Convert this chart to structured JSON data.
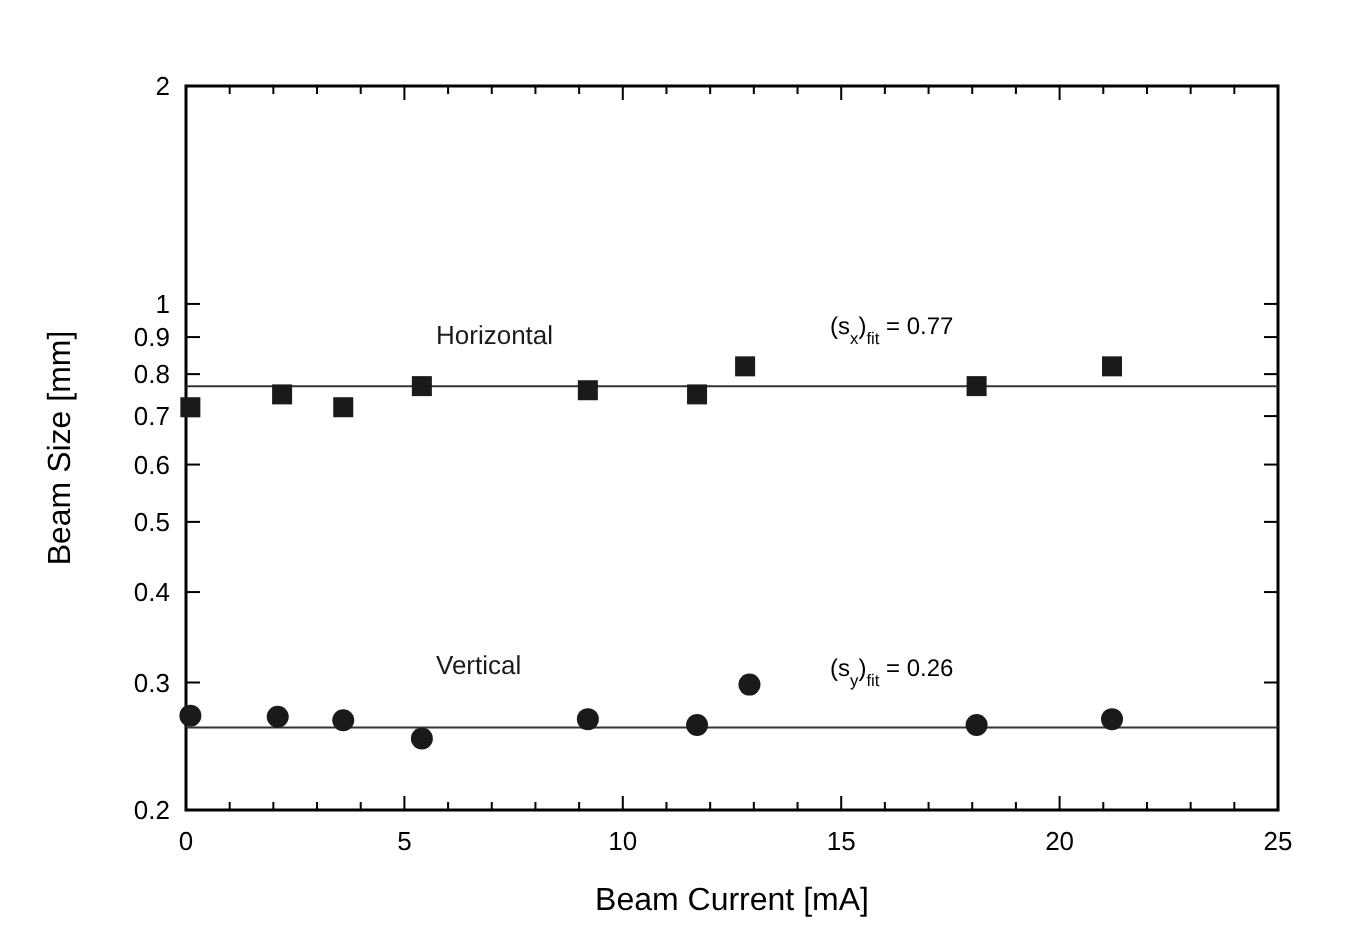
{
  "chart_data": {
    "type": "scatter",
    "xlabel": "Beam Current [mA]",
    "ylabel": "Beam Size [mm]",
    "xlim": [
      0,
      25
    ],
    "xticks": [
      0,
      {
        "value": 1,
        "label": null
      },
      {
        "value": 2,
        "label": null
      },
      {
        "value": 3,
        "label": null
      },
      {
        "value": 4,
        "label": null
      },
      5,
      {
        "value": 6,
        "label": null
      },
      {
        "value": 7,
        "label": null
      },
      {
        "value": 8,
        "label": null
      },
      {
        "value": 9,
        "label": null
      },
      10,
      {
        "value": 11,
        "label": null
      },
      {
        "value": 12,
        "label": null
      },
      {
        "value": 13,
        "label": null
      },
      {
        "value": 14,
        "label": null
      },
      15,
      {
        "value": 16,
        "label": null
      },
      {
        "value": 17,
        "label": null
      },
      {
        "value": 18,
        "label": null
      },
      {
        "value": 19,
        "label": null
      },
      20,
      {
        "value": 21,
        "label": null
      },
      {
        "value": 22,
        "label": null
      },
      {
        "value": 23,
        "label": null
      },
      {
        "value": 24,
        "label": null
      },
      25
    ],
    "ylim": [
      0.2,
      2
    ],
    "yticks": [
      0.2,
      0.3,
      0.4,
      0.5,
      0.6,
      0.7,
      0.8,
      0.9,
      1,
      2
    ],
    "log": "y",
    "grid": false,
    "series": [
      {
        "name": "Horizontal",
        "color": "#1a1a1a",
        "marker": "square",
        "x": [
          0.1,
          2.2,
          3.6,
          5.4,
          9.2,
          11.7,
          12.8,
          18.1,
          21.2
        ],
        "values": [
          0.72,
          0.75,
          0.72,
          0.77,
          0.76,
          0.75,
          0.82,
          0.77,
          0.82
        ]
      },
      {
        "name": "Vertical",
        "color": "#1a1a1a",
        "marker": "circle",
        "x": [
          0.1,
          2.1,
          3.6,
          5.4,
          9.2,
          11.7,
          12.9,
          18.1,
          21.2
        ],
        "values": [
          0.27,
          0.269,
          0.266,
          0.251,
          0.267,
          0.262,
          0.298,
          0.262,
          0.267
        ]
      }
    ],
    "ref_lines": [
      {
        "axis": "y",
        "value": 0.77,
        "label": "(s$_{x}$)$_{fit}$ = 0.77",
        "color": "#333333"
      },
      {
        "axis": "y",
        "value": 0.26,
        "label": "(s$_{y}$)$_{fit}$ = 0.26",
        "color": "#333333"
      }
    ]
  }
}
